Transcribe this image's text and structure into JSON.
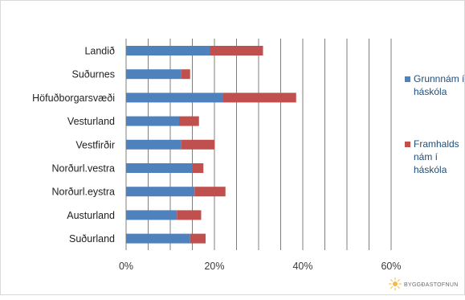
{
  "chart_data": {
    "type": "bar",
    "stacked": true,
    "orientation": "horizontal",
    "categories": [
      "Landið",
      "Suðurnes",
      "Höfuðborgarsvæði",
      "Vesturland",
      "Vestfirðir",
      "Norðurl.vestra",
      "Norðurl.eystra",
      "Austurland",
      "Suðurland"
    ],
    "series": [
      {
        "name": "Grunnnám í háskóla",
        "color": "#4f81bd",
        "values": [
          19,
          12.5,
          22,
          12,
          12.5,
          15,
          15.5,
          11.5,
          14.5
        ]
      },
      {
        "name": "Framhaldsnám í háskóla",
        "color": "#c0504d",
        "values": [
          12,
          2,
          16.5,
          4.5,
          7.5,
          2.5,
          7,
          5.5,
          3.5
        ]
      }
    ],
    "xlim": [
      0,
      60
    ],
    "xticks": [
      "0%",
      "20%",
      "40%",
      "60%"
    ],
    "grid": "vertical",
    "legend": "right",
    "title": "",
    "xlabel": "",
    "ylabel": ""
  },
  "legend": {
    "grunn": [
      "Grunnnám í",
      "háskóla"
    ],
    "framhald": [
      "Framhalds",
      "nám í",
      "háskóla"
    ]
  },
  "logo": {
    "text": "BYGGÐASTOFNUN"
  }
}
